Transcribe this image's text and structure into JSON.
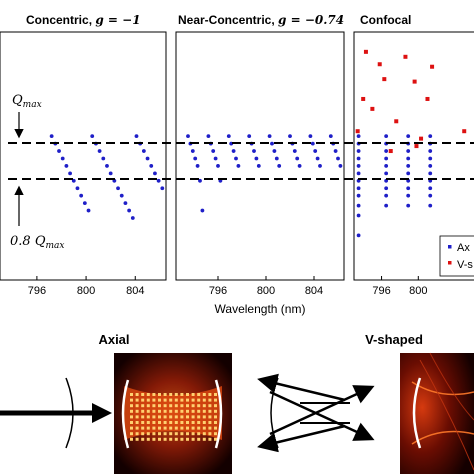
{
  "chart_data": [
    {
      "type": "scatter",
      "title": "Concentric",
      "title_param": "g = −1",
      "xlim": [
        793,
        806.5
      ],
      "ylim": [
        0,
        1
      ],
      "xticks": [
        "796",
        "800",
        "804"
      ],
      "series": [
        {
          "color": "#1f1fc8",
          "x": [
            797.2,
            797.5,
            797.8,
            798.1,
            798.4,
            798.7,
            799.0,
            799.3,
            799.6,
            799.9,
            800.2,
            800.5,
            800.8,
            801.1,
            801.4,
            801.7,
            802.0,
            802.3,
            802.6,
            802.9,
            803.2,
            803.5,
            803.8,
            804.1,
            804.4,
            804.7,
            805.0,
            805.3,
            805.6,
            805.9,
            806.2
          ],
          "y": [
            0.58,
            0.55,
            0.52,
            0.49,
            0.46,
            0.43,
            0.4,
            0.37,
            0.34,
            0.31,
            0.28,
            0.58,
            0.55,
            0.52,
            0.49,
            0.46,
            0.43,
            0.4,
            0.37,
            0.34,
            0.31,
            0.28,
            0.25,
            0.58,
            0.55,
            0.52,
            0.49,
            0.46,
            0.43,
            0.4,
            0.37
          ]
        }
      ]
    },
    {
      "type": "scatter",
      "title": "Near-Concentric",
      "title_param": "g = −0.74",
      "xlim": [
        792.5,
        806.5
      ],
      "ylim": [
        0,
        1
      ],
      "xticks": [
        "796",
        "800",
        "804"
      ],
      "xlabel": "Wavelength (nm)",
      "series": [
        {
          "color": "#1f1fc8",
          "x": [
            793.5,
            793.7,
            793.9,
            794.1,
            794.3,
            794.5,
            794.7,
            795.2,
            795.4,
            795.6,
            795.8,
            796.0,
            796.2,
            796.9,
            797.1,
            797.3,
            797.5,
            797.7,
            798.6,
            798.8,
            799.0,
            799.2,
            799.4,
            800.3,
            800.5,
            800.7,
            800.9,
            801.1,
            802.0,
            802.2,
            802.4,
            802.6,
            802.8,
            803.7,
            803.9,
            804.1,
            804.3,
            804.5,
            805.4,
            805.6,
            805.8,
            806.0,
            806.2
          ],
          "y": [
            0.58,
            0.55,
            0.52,
            0.49,
            0.46,
            0.4,
            0.28,
            0.58,
            0.55,
            0.52,
            0.49,
            0.46,
            0.4,
            0.58,
            0.55,
            0.52,
            0.49,
            0.46,
            0.58,
            0.55,
            0.52,
            0.49,
            0.46,
            0.58,
            0.55,
            0.52,
            0.49,
            0.46,
            0.58,
            0.55,
            0.52,
            0.49,
            0.46,
            0.58,
            0.55,
            0.52,
            0.49,
            0.46,
            0.58,
            0.55,
            0.52,
            0.49,
            0.46
          ]
        }
      ]
    },
    {
      "type": "scatter",
      "title": "Confocal",
      "xlim": [
        793,
        806.5
      ],
      "ylim": [
        0,
        1
      ],
      "xticks": [
        "796",
        "800"
      ],
      "legend": [
        "Ax",
        "V-s"
      ],
      "legend_placement": "bottom-right",
      "series": [
        {
          "name": "Ax",
          "color": "#1f1fc8",
          "x": [
            793.5,
            793.5,
            793.5,
            793.5,
            793.5,
            793.5,
            793.5,
            793.5,
            793.5,
            793.5,
            793.5,
            793.5,
            796.5,
            796.5,
            796.5,
            796.5,
            796.5,
            796.5,
            796.5,
            796.5,
            796.5,
            796.5,
            798.9,
            798.9,
            798.9,
            798.9,
            798.9,
            798.9,
            798.9,
            798.9,
            798.9,
            798.9,
            801.3,
            801.3,
            801.3,
            801.3,
            801.3,
            801.3,
            801.3,
            801.3,
            801.3,
            801.3
          ],
          "y": [
            0.58,
            0.55,
            0.52,
            0.49,
            0.46,
            0.43,
            0.4,
            0.37,
            0.34,
            0.3,
            0.26,
            0.18,
            0.58,
            0.55,
            0.52,
            0.49,
            0.46,
            0.43,
            0.4,
            0.37,
            0.34,
            0.3,
            0.58,
            0.55,
            0.52,
            0.49,
            0.46,
            0.43,
            0.4,
            0.37,
            0.34,
            0.3,
            0.58,
            0.55,
            0.52,
            0.49,
            0.46,
            0.43,
            0.4,
            0.37,
            0.34,
            0.3
          ]
        },
        {
          "name": "V-s",
          "color": "#dd1111",
          "x": [
            794.3,
            795.8,
            798.6,
            801.5,
            796.3,
            799.6,
            794.0,
            801.0,
            795.0,
            797.6,
            800.3,
            793.4,
            797.0,
            799.8,
            805.0
          ],
          "y": [
            0.92,
            0.87,
            0.9,
            0.86,
            0.81,
            0.8,
            0.73,
            0.73,
            0.69,
            0.64,
            0.57,
            0.6,
            0.52,
            0.54,
            0.6
          ]
        }
      ]
    }
  ],
  "annotations": {
    "qmax": "Q",
    "qmax_sub": "max",
    "qmax08_prefix": "0.8 ",
    "qmax08": "Q",
    "qmax08_sub": "max"
  },
  "bottom": {
    "axial_title": "Axial",
    "vshaped_title": "V-shaped"
  }
}
